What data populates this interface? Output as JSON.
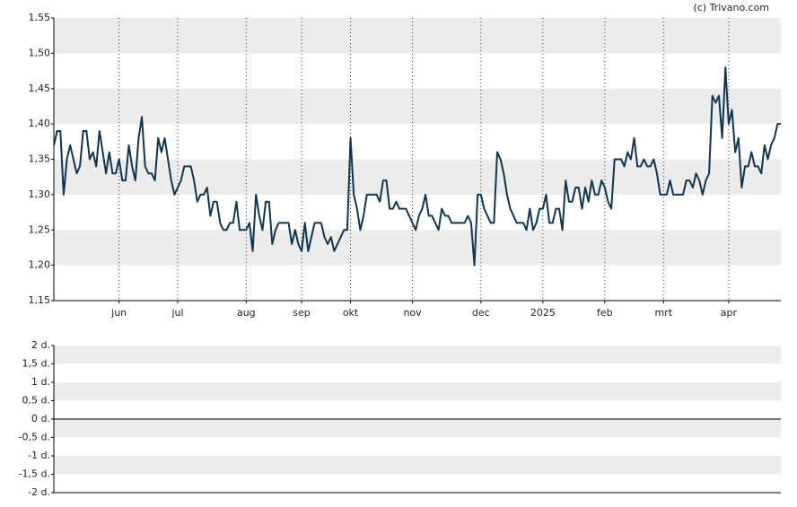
{
  "source": "(c) Trivano.com",
  "chart_data": [
    {
      "type": "line",
      "series": [
        {
          "color": "#0f3550",
          "values": [
            1.37,
            1.39,
            1.39,
            1.3,
            1.35,
            1.37,
            1.35,
            1.33,
            1.34,
            1.39,
            1.39,
            1.35,
            1.36,
            1.34,
            1.39,
            1.36,
            1.33,
            1.36,
            1.33,
            1.33,
            1.35,
            1.32,
            1.32,
            1.37,
            1.34,
            1.32,
            1.38,
            1.41,
            1.34,
            1.33,
            1.33,
            1.32,
            1.38,
            1.36,
            1.38,
            1.35,
            1.32,
            1.3,
            1.31,
            1.32,
            1.34,
            1.34,
            1.34,
            1.32,
            1.29,
            1.3,
            1.3,
            1.31,
            1.27,
            1.29,
            1.29,
            1.26,
            1.25,
            1.25,
            1.26,
            1.26,
            1.29,
            1.25,
            1.25,
            1.25,
            1.26,
            1.22,
            1.3,
            1.27,
            1.25,
            1.29,
            1.29,
            1.23,
            1.25,
            1.26,
            1.26,
            1.26,
            1.26,
            1.23,
            1.25,
            1.23,
            1.22,
            1.26,
            1.22,
            1.24,
            1.26,
            1.26,
            1.26,
            1.24,
            1.23,
            1.24,
            1.22,
            1.23,
            1.24,
            1.25,
            1.25,
            1.38,
            1.3,
            1.28,
            1.25,
            1.27,
            1.3,
            1.3,
            1.3,
            1.3,
            1.29,
            1.32,
            1.32,
            1.28,
            1.28,
            1.29,
            1.28,
            1.28,
            1.28,
            1.27,
            1.26,
            1.25,
            1.27,
            1.28,
            1.3,
            1.27,
            1.27,
            1.26,
            1.25,
            1.28,
            1.27,
            1.27,
            1.26,
            1.26,
            1.26,
            1.26,
            1.26,
            1.27,
            1.26,
            1.2,
            1.3,
            1.3,
            1.28,
            1.27,
            1.26,
            1.26,
            1.36,
            1.35,
            1.33,
            1.3,
            1.28,
            1.27,
            1.26,
            1.26,
            1.26,
            1.25,
            1.28,
            1.25,
            1.26,
            1.28,
            1.28,
            1.3,
            1.26,
            1.26,
            1.28,
            1.28,
            1.25,
            1.32,
            1.29,
            1.29,
            1.31,
            1.31,
            1.28,
            1.31,
            1.29,
            1.32,
            1.3,
            1.3,
            1.32,
            1.31,
            1.29,
            1.28,
            1.35,
            1.35,
            1.35,
            1.34,
            1.36,
            1.35,
            1.38,
            1.34,
            1.34,
            1.35,
            1.34,
            1.34,
            1.35,
            1.33,
            1.3,
            1.3,
            1.3,
            1.32,
            1.3,
            1.3,
            1.3,
            1.3,
            1.32,
            1.32,
            1.31,
            1.33,
            1.32,
            1.3,
            1.32,
            1.33,
            1.44,
            1.43,
            1.44,
            1.38,
            1.48,
            1.4,
            1.42,
            1.36,
            1.38,
            1.31,
            1.34,
            1.34,
            1.36,
            1.34,
            1.34,
            1.33,
            1.37,
            1.35,
            1.37,
            1.38,
            1.4,
            1.4
          ]
        }
      ],
      "xlim": [
        0,
        223
      ],
      "xticks": [
        {
          "value": 20,
          "label": "jun"
        },
        {
          "value": 38,
          "label": "jul"
        },
        {
          "value": 59,
          "label": "aug"
        },
        {
          "value": 76,
          "label": "sep"
        },
        {
          "value": 91,
          "label": "okt"
        },
        {
          "value": 110,
          "label": "nov"
        },
        {
          "value": 131,
          "label": "dec"
        },
        {
          "value": 150,
          "label": "2025"
        },
        {
          "value": 169,
          "label": "feb"
        },
        {
          "value": 187,
          "label": "mrt"
        },
        {
          "value": 207,
          "label": "apr"
        }
      ],
      "ylim": [
        1.15,
        1.55
      ],
      "yticks": [
        {
          "value": 1.15,
          "label": "1,15"
        },
        {
          "value": 1.2,
          "label": "1,20"
        },
        {
          "value": 1.25,
          "label": "1,25"
        },
        {
          "value": 1.3,
          "label": "1,30"
        },
        {
          "value": 1.35,
          "label": "1,35"
        },
        {
          "value": 1.4,
          "label": "1,40"
        },
        {
          "value": 1.45,
          "label": "1,45"
        },
        {
          "value": 1.5,
          "label": "1,50"
        },
        {
          "value": 1.55,
          "label": "1,55"
        }
      ],
      "grid": true
    },
    {
      "type": "line",
      "series": [],
      "ylim": [
        -2,
        2
      ],
      "yticks": [
        {
          "value": -2,
          "label": "-2 d."
        },
        {
          "value": -1.5,
          "label": "-1,5 d."
        },
        {
          "value": -1,
          "label": "-1 d."
        },
        {
          "value": -0.5,
          "label": "-0,5 d."
        },
        {
          "value": 0,
          "label": "0 d."
        },
        {
          "value": 0.5,
          "label": "0,5 d."
        },
        {
          "value": 1,
          "label": "1 d."
        },
        {
          "value": 1.5,
          "label": "1,5 d."
        },
        {
          "value": 2,
          "label": "2 d."
        }
      ],
      "grid": true
    }
  ]
}
